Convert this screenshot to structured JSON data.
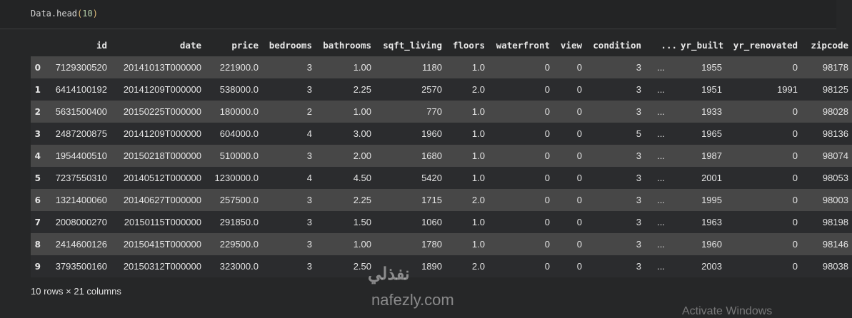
{
  "code_cell": {
    "prefix": "Data.head",
    "open": "(",
    "arg": "10",
    "close": ")"
  },
  "table": {
    "columns": [
      "",
      "id",
      "date",
      "price",
      "bedrooms",
      "bathrooms",
      "sqft_living",
      "floors",
      "waterfront",
      "view",
      "condition",
      "...",
      "yr_built",
      "yr_renovated",
      "zipcode"
    ],
    "rows": [
      [
        "0",
        "7129300520",
        "20141013T000000",
        "221900.0",
        "3",
        "1.00",
        "1180",
        "1.0",
        "0",
        "0",
        "3",
        "...",
        "1955",
        "0",
        "98178"
      ],
      [
        "1",
        "6414100192",
        "20141209T000000",
        "538000.0",
        "3",
        "2.25",
        "2570",
        "2.0",
        "0",
        "0",
        "3",
        "...",
        "1951",
        "1991",
        "98125"
      ],
      [
        "2",
        "5631500400",
        "20150225T000000",
        "180000.0",
        "2",
        "1.00",
        "770",
        "1.0",
        "0",
        "0",
        "3",
        "...",
        "1933",
        "0",
        "98028"
      ],
      [
        "3",
        "2487200875",
        "20141209T000000",
        "604000.0",
        "4",
        "3.00",
        "1960",
        "1.0",
        "0",
        "0",
        "5",
        "...",
        "1965",
        "0",
        "98136"
      ],
      [
        "4",
        "1954400510",
        "20150218T000000",
        "510000.0",
        "3",
        "2.00",
        "1680",
        "1.0",
        "0",
        "0",
        "3",
        "...",
        "1987",
        "0",
        "98074"
      ],
      [
        "5",
        "7237550310",
        "20140512T000000",
        "1230000.0",
        "4",
        "4.50",
        "5420",
        "1.0",
        "0",
        "0",
        "3",
        "...",
        "2001",
        "0",
        "98053"
      ],
      [
        "6",
        "1321400060",
        "20140627T000000",
        "257500.0",
        "3",
        "2.25",
        "1715",
        "2.0",
        "0",
        "0",
        "3",
        "...",
        "1995",
        "0",
        "98003"
      ],
      [
        "7",
        "2008000270",
        "20150115T000000",
        "291850.0",
        "3",
        "1.50",
        "1060",
        "1.0",
        "0",
        "0",
        "3",
        "...",
        "1963",
        "0",
        "98198"
      ],
      [
        "8",
        "2414600126",
        "20150415T000000",
        "229500.0",
        "3",
        "1.00",
        "1780",
        "1.0",
        "0",
        "0",
        "3",
        "...",
        "1960",
        "0",
        "98146"
      ],
      [
        "9",
        "3793500160",
        "20150312T000000",
        "323000.0",
        "3",
        "2.50",
        "1890",
        "2.0",
        "0",
        "0",
        "3",
        "...",
        "2003",
        "0",
        "98038"
      ]
    ]
  },
  "footer": "10 rows × 21 columns",
  "watermark": {
    "arabic": "نفذلي",
    "latin": "nafezly.com"
  },
  "os_overlay": "Activate Windows"
}
